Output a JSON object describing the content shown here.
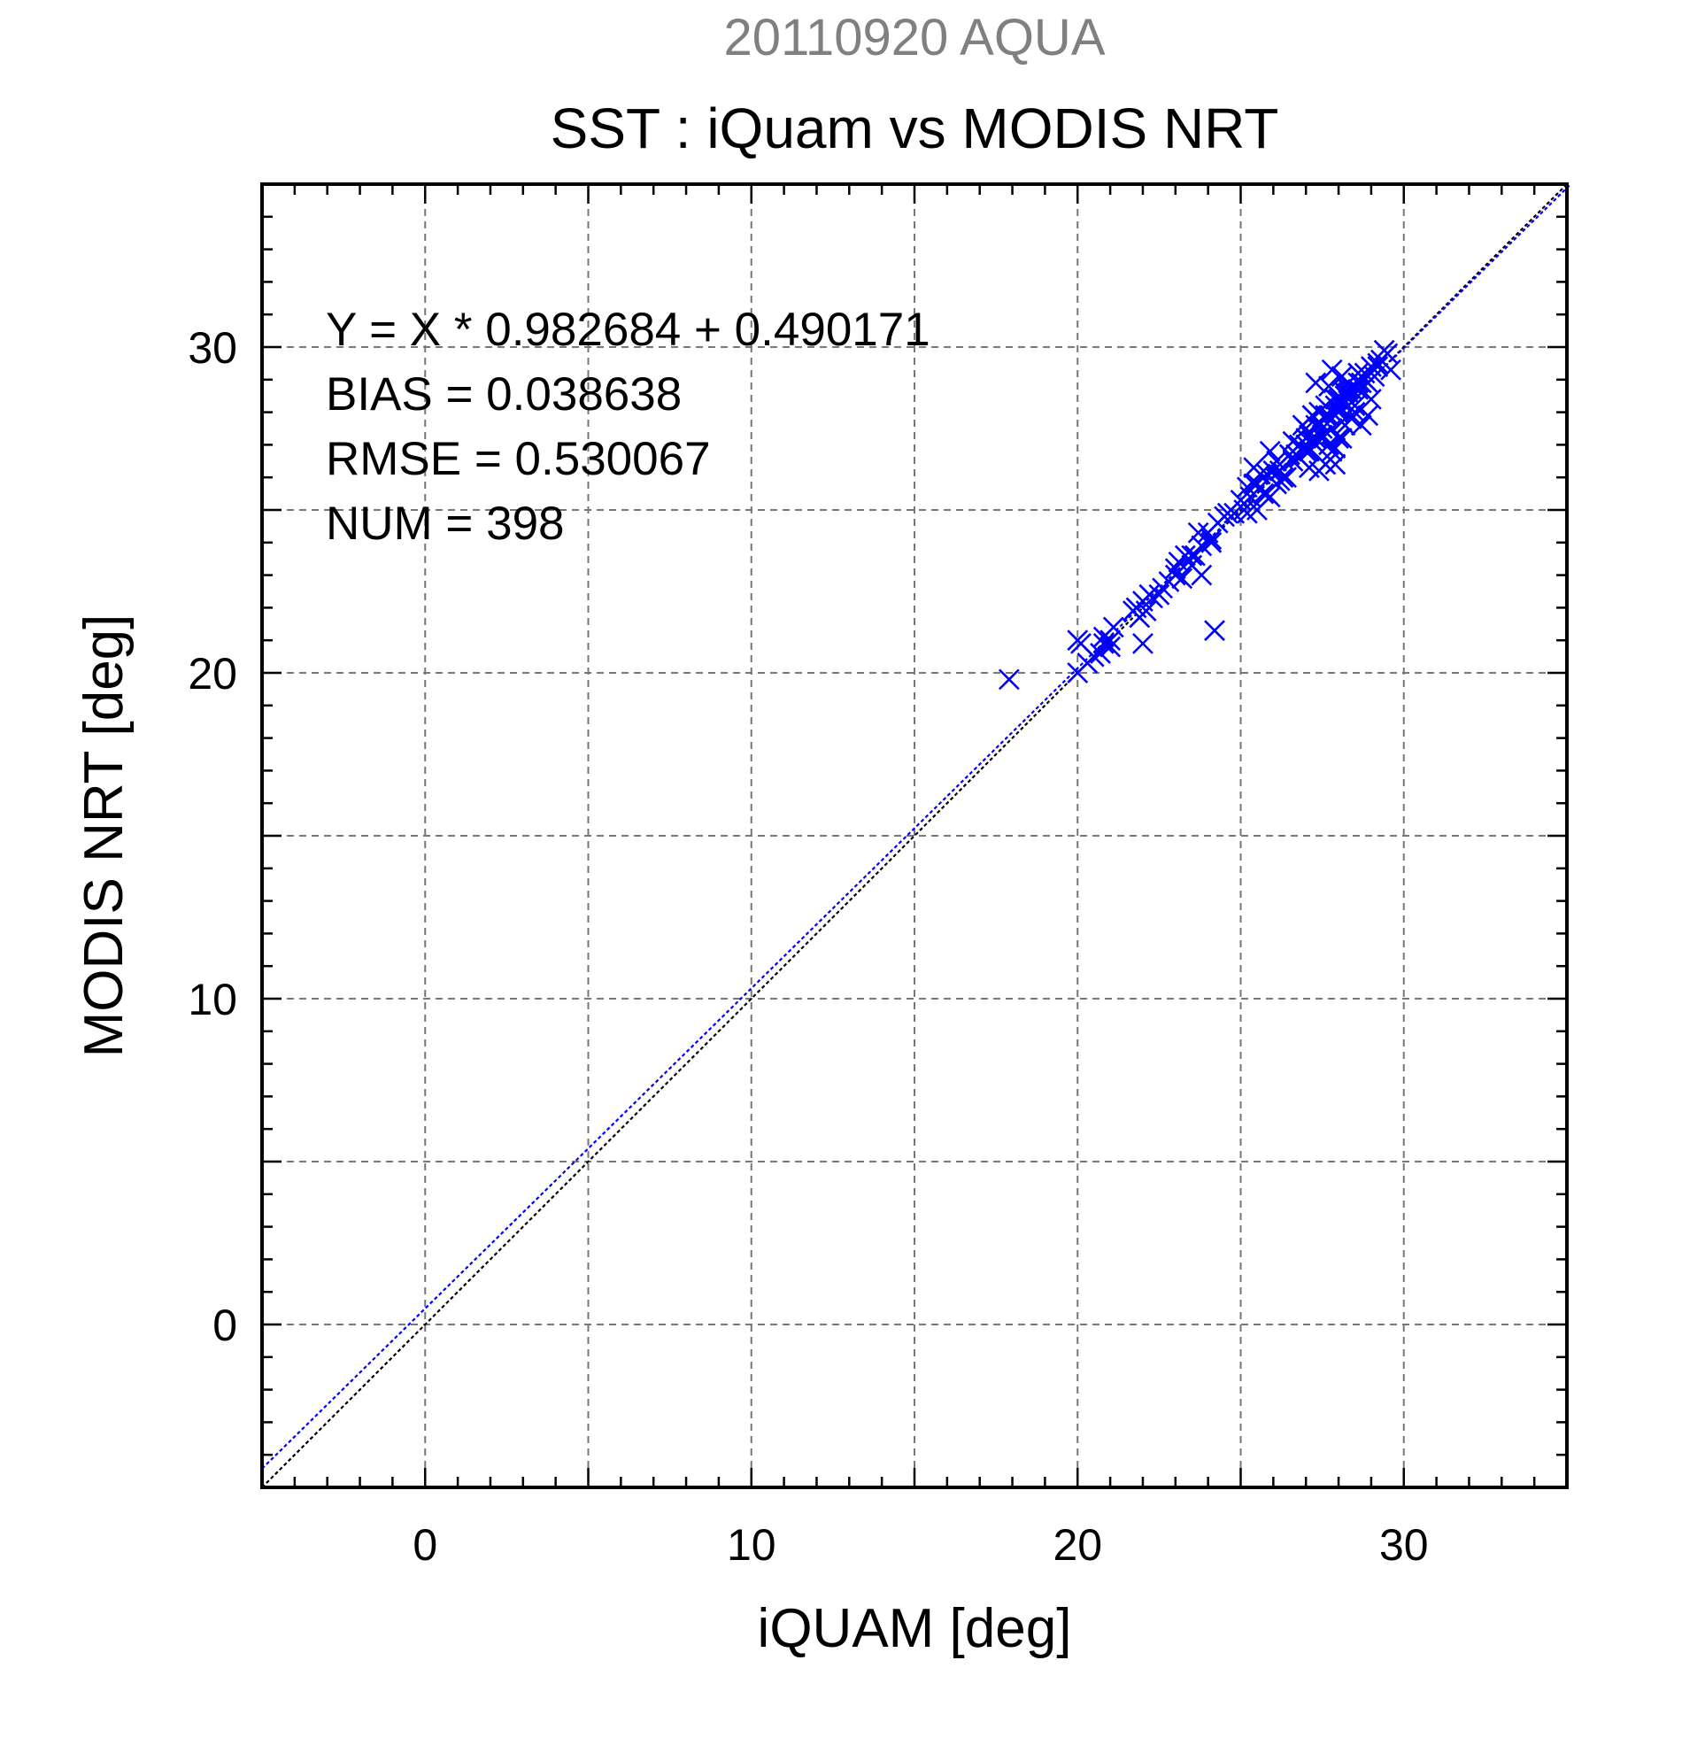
{
  "chart_data": {
    "type": "scatter",
    "date_title": "20110920 AQUA",
    "title": "SST : iQuam vs MODIS NRT",
    "xlabel": "iQUAM [deg]",
    "ylabel": "MODIS NRT [deg]",
    "xlim": [
      -5,
      35
    ],
    "ylim": [
      -5,
      35
    ],
    "xticks": [
      0,
      10,
      20,
      30
    ],
    "yticks": [
      0,
      10,
      20,
      30
    ],
    "grid": true,
    "grid_step": 5,
    "minor_tick_step": 1,
    "stats": [
      "Y = X * 0.982684 + 0.490171",
      "BIAS = 0.038638",
      "RMSE = 0.530067",
      "NUM = 398"
    ],
    "regression": {
      "slope": 0.982684,
      "intercept": 0.490171,
      "color": "#0000ff"
    },
    "identity_line": {
      "color": "#000000"
    },
    "marker_color": "#0000ff",
    "series": [
      {
        "marker": "x",
        "x": [
          17.9,
          20.0,
          20.1,
          20.0,
          20.3,
          20.5,
          20.7,
          20.8,
          21.0,
          21.1,
          20.8,
          21.0,
          21.7,
          21.8,
          21.9,
          22.0,
          22.1,
          22.2,
          22.3,
          22.5,
          22.0,
          22.6,
          22.8,
          23.0,
          23.1,
          23.3,
          23.5,
          23.0,
          23.2,
          23.6,
          23.8,
          24.0,
          24.1,
          24.3,
          24.5,
          23.7,
          24.1,
          24.2,
          23.5,
          23.8,
          24.6,
          24.8,
          25.0,
          25.1,
          25.2,
          25.3,
          25.4,
          25.5,
          25.6,
          25.7,
          25.8,
          25.9,
          26.0,
          26.1,
          26.2,
          25.4,
          25.6,
          25.9,
          26.3,
          26.5,
          26.6,
          26.8,
          27.0,
          27.1,
          27.2,
          27.3,
          27.4,
          27.5,
          27.6,
          27.7,
          27.8,
          27.9,
          28.0,
          26.8,
          27.0,
          27.2,
          27.4,
          27.6,
          27.8,
          28.0,
          28.1,
          28.2,
          28.3,
          28.4,
          28.5,
          28.6,
          28.7,
          28.8,
          28.9,
          29.0,
          29.1,
          29.2,
          29.3,
          29.4,
          29.5,
          27.3,
          27.5,
          27.7,
          27.9,
          28.1,
          28.3,
          28.5,
          27.1,
          27.6,
          28.0,
          28.2,
          28.4,
          28.6,
          28.8,
          29.0,
          27.5,
          27.8,
          28.1,
          28.3,
          26.5,
          26.9,
          27.3,
          27.7,
          28.1,
          28.6,
          29.2,
          27.2,
          27.4,
          27.6,
          27.9,
          28.7,
          28.2,
          28.0,
          27.8,
          27.4,
          27.0,
          26.7,
          26.4,
          26.1,
          25.8,
          25.5,
          25.2,
          26.2,
          26.6,
          27.1,
          27.5,
          29.6,
          28.9,
          28.4,
          27.9,
          27.6,
          27.3,
          27.0
        ],
        "y": [
          19.8,
          21.0,
          20.9,
          20.0,
          20.3,
          20.5,
          20.6,
          20.9,
          21.0,
          21.4,
          21.1,
          20.8,
          21.9,
          22.0,
          21.7,
          22.2,
          21.9,
          22.4,
          22.3,
          22.4,
          20.9,
          22.6,
          22.8,
          23.0,
          23.4,
          23.6,
          23.6,
          23.2,
          22.9,
          23.6,
          23.9,
          24.3,
          24.1,
          24.6,
          24.8,
          24.3,
          24.0,
          21.3,
          23.3,
          23.0,
          24.9,
          24.9,
          25.3,
          25.0,
          25.7,
          25.4,
          25.8,
          25.8,
          26.1,
          25.5,
          26.1,
          25.4,
          26.2,
          26.5,
          26.2,
          26.3,
          25.7,
          26.8,
          26.0,
          26.7,
          27.1,
          27.0,
          27.5,
          27.3,
          27.1,
          27.6,
          27.7,
          27.2,
          28.2,
          27.9,
          27.5,
          28.2,
          28.0,
          26.6,
          27.2,
          27.9,
          27.7,
          27.9,
          28.0,
          28.4,
          27.7,
          28.5,
          28.6,
          28.7,
          28.2,
          28.9,
          28.9,
          29.2,
          28.9,
          29.4,
          29.1,
          29.5,
          29.6,
          29.9,
          29.8,
          28.9,
          27.5,
          28.8,
          28.4,
          28.3,
          28.9,
          28.0,
          26.8,
          27.9,
          27.2,
          28.6,
          27.8,
          28.7,
          29.0,
          28.4,
          27.2,
          26.8,
          29.1,
          28.7,
          26.7,
          27.6,
          27.0,
          27.0,
          27.2,
          29.2,
          29.4,
          27.9,
          26.2,
          26.4,
          26.4,
          27.6,
          27.6,
          28.1,
          29.3,
          28.0,
          27.0,
          26.7,
          26.0,
          25.8,
          25.5,
          25.0,
          24.9,
          25.9,
          26.5,
          26.3,
          27.3,
          29.3,
          27.9,
          28.3,
          26.9,
          26.4,
          27.2,
          26.8
        ]
      }
    ]
  }
}
